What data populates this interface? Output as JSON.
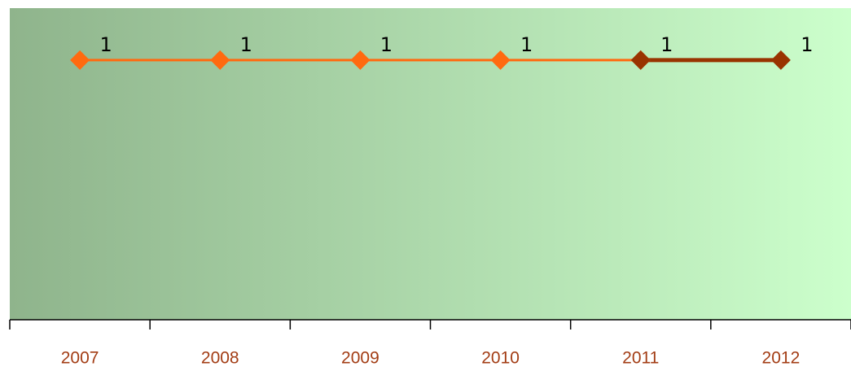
{
  "chart_data": {
    "type": "line",
    "categories": [
      "2007",
      "2008",
      "2009",
      "2010",
      "2011",
      "2012"
    ],
    "series": [
      {
        "color": "#ff6a10",
        "values": [
          1,
          1,
          1,
          1,
          1,
          null
        ]
      },
      {
        "color": "#993300",
        "values": [
          null,
          null,
          null,
          null,
          1,
          1
        ]
      }
    ],
    "ylim": [
      0,
      1.2
    ],
    "grid": false
  }
}
